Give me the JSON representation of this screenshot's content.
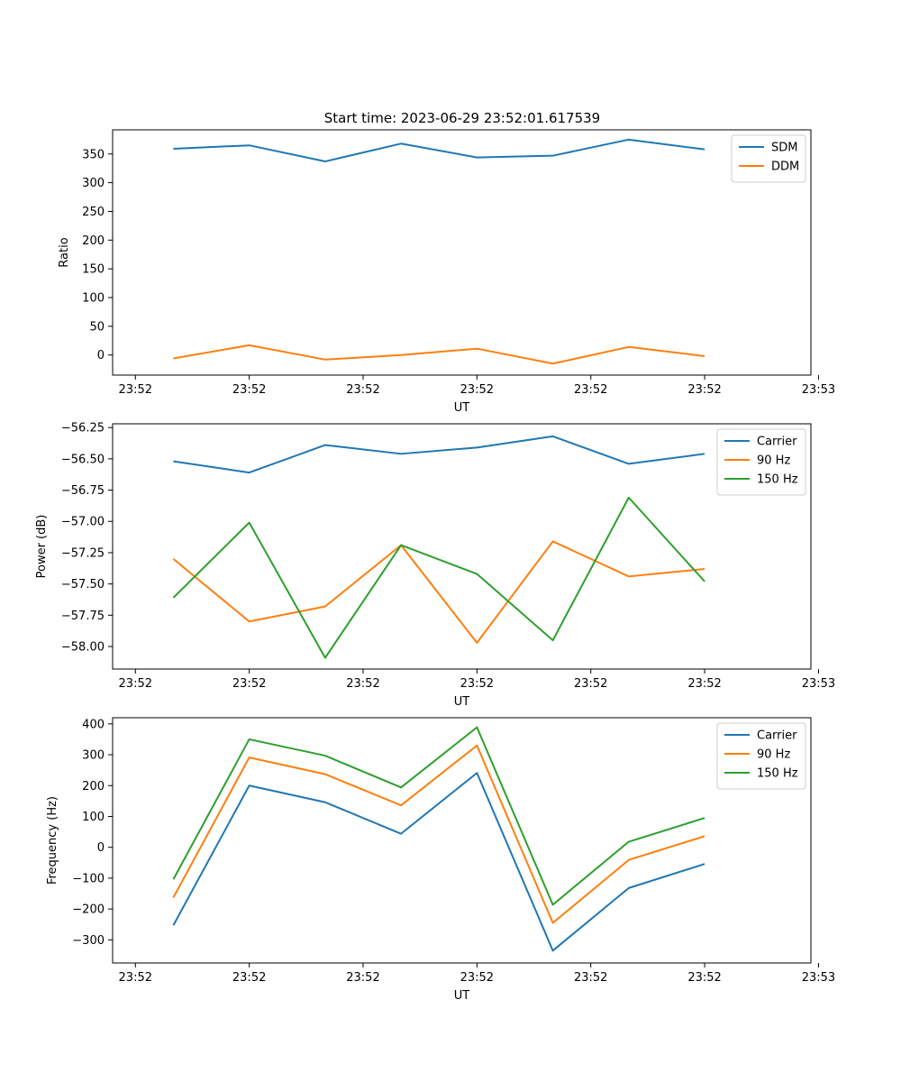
{
  "figure": {
    "title": "Start time: 2023-06-29 23:52:01.617539"
  },
  "colors": {
    "blue": "#1f77b4",
    "orange": "#ff7f0e",
    "green": "#2ca02c"
  },
  "chart_data": [
    {
      "type": "line",
      "title": "Start time: 2023-06-29 23:52:01.617539",
      "xlabel": "UT",
      "ylabel": "Ratio",
      "x": [
        1,
        2,
        3,
        4,
        5,
        6,
        7,
        8
      ],
      "xlim": [
        0.2,
        9.4
      ],
      "x_ticks": [
        0.5,
        2.0,
        3.5,
        5.0,
        6.5,
        8.0,
        9.5
      ],
      "x_tick_labels": [
        "23:52",
        "23:52",
        "23:52",
        "23:52",
        "23:52",
        "23:52",
        "23:53"
      ],
      "ylim": [
        -35,
        392
      ],
      "y_ticks": [
        0,
        50,
        100,
        150,
        200,
        250,
        300,
        350
      ],
      "y_tick_labels": [
        "0",
        "50",
        "100",
        "150",
        "200",
        "250",
        "300",
        "350"
      ],
      "legend_position": "top-right",
      "series": [
        {
          "name": "SDM",
          "color": "#1f77b4",
          "values": [
            359,
            365,
            337,
            368,
            344,
            347,
            375,
            358
          ]
        },
        {
          "name": "DDM",
          "color": "#ff7f0e",
          "values": [
            -6,
            17,
            -8,
            0,
            11,
            -15,
            14,
            -2
          ]
        }
      ]
    },
    {
      "type": "line",
      "title": "",
      "xlabel": "UT",
      "ylabel": "Power (dB)",
      "x": [
        1,
        2,
        3,
        4,
        5,
        6,
        7,
        8
      ],
      "xlim": [
        0.2,
        9.4
      ],
      "x_ticks": [
        0.5,
        2.0,
        3.5,
        5.0,
        6.5,
        8.0,
        9.5
      ],
      "x_tick_labels": [
        "23:52",
        "23:52",
        "23:52",
        "23:52",
        "23:52",
        "23:52",
        "23:53"
      ],
      "ylim": [
        -58.18,
        -56.22
      ],
      "y_ticks": [
        -58.0,
        -57.75,
        -57.5,
        -57.25,
        -57.0,
        -56.75,
        -56.5,
        -56.25
      ],
      "y_tick_labels": [
        "−58.00",
        "−57.75",
        "−57.50",
        "−57.25",
        "−57.00",
        "−56.75",
        "−56.50",
        "−56.25"
      ],
      "legend_position": "top-right",
      "series": [
        {
          "name": "Carrier",
          "color": "#1f77b4",
          "values": [
            -56.52,
            -56.61,
            -56.39,
            -56.46,
            -56.41,
            -56.32,
            -56.54,
            -56.46
          ]
        },
        {
          "name": "90 Hz",
          "color": "#ff7f0e",
          "values": [
            -57.3,
            -57.8,
            -57.68,
            -57.19,
            -57.97,
            -57.16,
            -57.44,
            -57.38
          ]
        },
        {
          "name": "150 Hz",
          "color": "#2ca02c",
          "values": [
            -57.61,
            -57.01,
            -58.09,
            -57.19,
            -57.42,
            -57.95,
            -56.81,
            -57.48
          ]
        }
      ]
    },
    {
      "type": "line",
      "title": "",
      "xlabel": "UT",
      "ylabel": "Frequency (Hz)",
      "x": [
        1,
        2,
        3,
        4,
        5,
        6,
        7,
        8
      ],
      "xlim": [
        0.2,
        9.4
      ],
      "x_ticks": [
        0.5,
        2.0,
        3.5,
        5.0,
        6.5,
        8.0,
        9.5
      ],
      "x_tick_labels": [
        "23:52",
        "23:52",
        "23:52",
        "23:52",
        "23:52",
        "23:52",
        "23:53"
      ],
      "ylim": [
        -375,
        420
      ],
      "y_ticks": [
        -300,
        -200,
        -100,
        0,
        100,
        200,
        300,
        400
      ],
      "y_tick_labels": [
        "−300",
        "−200",
        "−100",
        "0",
        "100",
        "200",
        "300",
        "400"
      ],
      "legend_position": "top-right",
      "series": [
        {
          "name": "Carrier",
          "color": "#1f77b4",
          "values": [
            -253,
            200,
            146,
            44,
            241,
            -335,
            -132,
            -54
          ]
        },
        {
          "name": "90 Hz",
          "color": "#ff7f0e",
          "values": [
            -163,
            291,
            237,
            136,
            330,
            -245,
            -41,
            36
          ]
        },
        {
          "name": "150 Hz",
          "color": "#2ca02c",
          "values": [
            -104,
            350,
            297,
            194,
            389,
            -186,
            18,
            95
          ]
        }
      ]
    }
  ]
}
